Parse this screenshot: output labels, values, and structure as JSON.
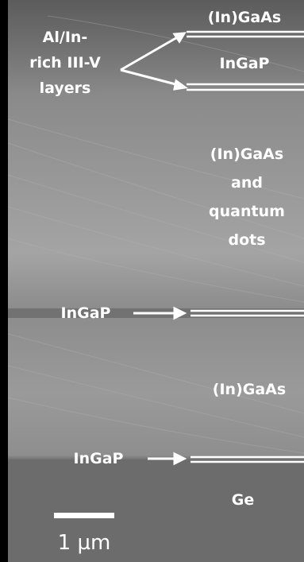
{
  "labels": [
    {
      "lines": [
        "(In)GaAs"
      ]
    },
    {
      "lines": [
        "Al/In-",
        "rich III-V",
        "layers"
      ]
    },
    {
      "lines": [
        "InGaP"
      ]
    },
    {
      "lines": [
        "(In)GaAs",
        "and",
        "quantum",
        "dots"
      ]
    },
    {
      "lines": [
        "InGaP"
      ]
    },
    {
      "lines": [
        "(In)GaAs"
      ]
    },
    {
      "lines": [
        "InGaP"
      ]
    },
    {
      "lines": [
        "Ge"
      ]
    }
  ],
  "scale_bar": {
    "label": "1 µm"
  }
}
